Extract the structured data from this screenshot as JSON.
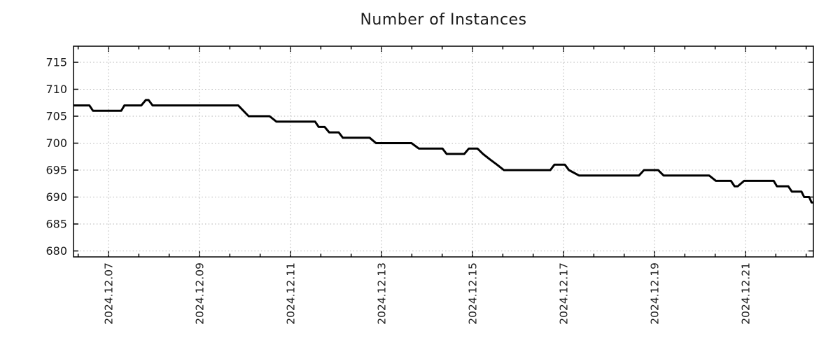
{
  "chart_data": {
    "type": "line",
    "title": "Number of Instances",
    "xlabel": "",
    "ylabel": "",
    "legend": "none",
    "grid": "dotted",
    "line_color": "#000000",
    "grid_color": "#b3b3b3",
    "frame_color": "#000000",
    "x_tick_labels": [
      "2024.12.07",
      "2024.12.09",
      "2024.12.11",
      "2024.12.13",
      "2024.12.15",
      "2024.12.17",
      "2024.12.19",
      "2024.12.21"
    ],
    "x_tick_days": [
      7,
      9,
      11,
      13,
      15,
      17,
      19,
      21
    ],
    "x_minor_step_days": 0.66667,
    "xlim_days": [
      6.23,
      22.49
    ],
    "y_ticks": [
      680,
      685,
      690,
      695,
      700,
      705,
      710,
      715
    ],
    "ylim": [
      678.9,
      718.0
    ],
    "series": [
      {
        "name": "instances",
        "points": [
          [
            6.23,
            707
          ],
          [
            6.58,
            707
          ],
          [
            6.66,
            706
          ],
          [
            7.28,
            706
          ],
          [
            7.35,
            707
          ],
          [
            7.72,
            707
          ],
          [
            7.82,
            708
          ],
          [
            7.88,
            708
          ],
          [
            7.97,
            707
          ],
          [
            9.85,
            707
          ],
          [
            10.08,
            705
          ],
          [
            10.54,
            705
          ],
          [
            10.69,
            704
          ],
          [
            11.54,
            704
          ],
          [
            11.62,
            703
          ],
          [
            11.75,
            703
          ],
          [
            11.85,
            702
          ],
          [
            12.06,
            702
          ],
          [
            12.15,
            701
          ],
          [
            12.74,
            701
          ],
          [
            12.88,
            700
          ],
          [
            13.66,
            700
          ],
          [
            13.82,
            699
          ],
          [
            14.34,
            699
          ],
          [
            14.43,
            698
          ],
          [
            14.82,
            698
          ],
          [
            14.92,
            699
          ],
          [
            15.11,
            699
          ],
          [
            15.23,
            698
          ],
          [
            15.38,
            697
          ],
          [
            15.54,
            696
          ],
          [
            15.69,
            695
          ],
          [
            16.71,
            695
          ],
          [
            16.8,
            696
          ],
          [
            17.03,
            696
          ],
          [
            17.12,
            695
          ],
          [
            17.34,
            694
          ],
          [
            18.66,
            694
          ],
          [
            18.77,
            695
          ],
          [
            19.08,
            695
          ],
          [
            19.2,
            694
          ],
          [
            20.2,
            694
          ],
          [
            20.35,
            693
          ],
          [
            20.68,
            693
          ],
          [
            20.76,
            692
          ],
          [
            20.83,
            692
          ],
          [
            20.97,
            693
          ],
          [
            21.62,
            693
          ],
          [
            21.69,
            692
          ],
          [
            21.94,
            692
          ],
          [
            22.02,
            691
          ],
          [
            22.23,
            691
          ],
          [
            22.29,
            690
          ],
          [
            22.4,
            690
          ],
          [
            22.45,
            689
          ],
          [
            22.49,
            689
          ]
        ]
      }
    ]
  }
}
